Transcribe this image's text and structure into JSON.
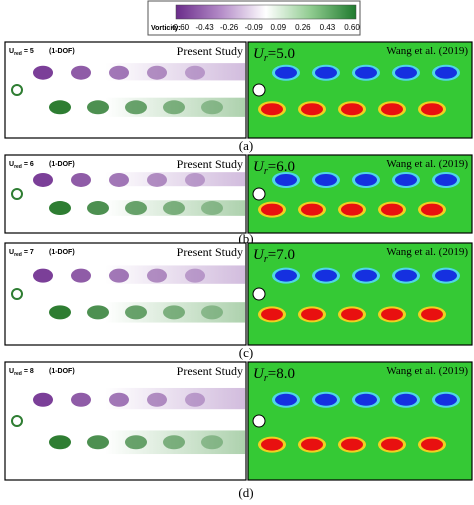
{
  "colorbar": {
    "label": "Vorticity:",
    "ticks": [
      "-0.60",
      "-0.43",
      "-0.26",
      "-0.09",
      "0.09",
      "0.26",
      "0.43",
      "0.60"
    ]
  },
  "panels": [
    {
      "left": {
        "u": "U",
        "sub": "red",
        "eq": "= 5",
        "dof": "(1-DOF)",
        "title": "Present Study"
      },
      "right": {
        "u": "U",
        "sub": "r",
        "eq": "=5.0",
        "source": "Wang et al. (2019)"
      },
      "caption": "(a)"
    },
    {
      "left": {
        "u": "U",
        "sub": "red",
        "eq": "= 6",
        "dof": "(1-DOF)",
        "title": "Present Study"
      },
      "right": {
        "u": "U",
        "sub": "r",
        "eq": "=6.0",
        "source": "Wang et al. (2019)"
      },
      "caption": "(b)"
    },
    {
      "left": {
        "u": "U",
        "sub": "red",
        "eq": "= 7",
        "dof": "(1-DOF)",
        "title": "Present Study"
      },
      "right": {
        "u": "U",
        "sub": "r",
        "eq": "=7.0",
        "source": "Wang et al. (2019)"
      },
      "caption": "(c)"
    },
    {
      "left": {
        "u": "U",
        "sub": "red",
        "eq": "= 8",
        "dof": "(1-DOF)",
        "title": "Present Study"
      },
      "right": {
        "u": "U",
        "sub": "r",
        "eq": "=8.0",
        "source": "Wang et al. (2019)"
      },
      "caption": "(d)"
    }
  ]
}
